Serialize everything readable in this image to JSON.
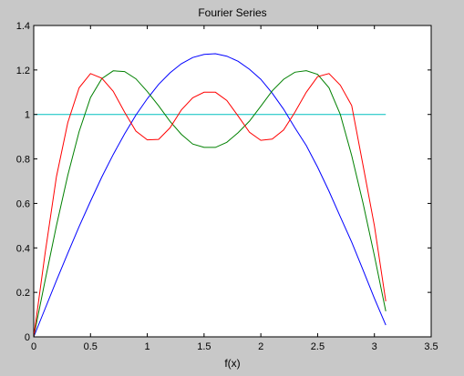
{
  "chart_data": {
    "type": "line",
    "title": "Fourier Series",
    "xlabel": "f(x)",
    "ylabel": "",
    "xlim": [
      0,
      3.5
    ],
    "ylim": [
      0,
      1.4
    ],
    "xticks": [
      0,
      0.5,
      1,
      1.5,
      2,
      2.5,
      3,
      3.5
    ],
    "xtick_labels": [
      "0",
      "0.5",
      "1",
      "1.5",
      "2",
      "2.5",
      "3",
      "3.5"
    ],
    "yticks": [
      0,
      0.2,
      0.4,
      0.6,
      0.8,
      1,
      1.2,
      1.4
    ],
    "ytick_labels": [
      "0",
      "0.2",
      "0.4",
      "0.6",
      "0.8",
      "1",
      "1.2",
      "1.4"
    ],
    "grid": false,
    "legend": "none",
    "series": [
      {
        "color": "#00bfbf",
        "x": [
          0,
          0.1,
          0.2,
          0.3,
          0.4,
          0.5,
          0.6,
          0.7,
          0.8,
          0.9,
          1.0,
          1.1,
          1.2,
          1.3,
          1.4,
          1.5,
          1.6,
          1.7,
          1.8,
          1.9,
          2.0,
          2.1,
          2.2,
          2.3,
          2.4,
          2.5,
          2.6,
          2.7,
          2.8,
          2.9,
          3.0,
          3.1
        ],
        "y": [
          1.0,
          1.0,
          1.0,
          1.0,
          1.0,
          1.0,
          1.0,
          1.0,
          1.0,
          1.0,
          1.0,
          1.0,
          1.0,
          1.0,
          1.0,
          1.0,
          1.0,
          1.0,
          1.0,
          1.0,
          1.0,
          1.0,
          1.0,
          1.0,
          1.0,
          1.0,
          1.0,
          1.0,
          1.0,
          1.0,
          1.0,
          1.0
        ]
      },
      {
        "color": "#0000ff",
        "x": [
          0,
          0.1,
          0.2,
          0.3,
          0.4,
          0.5,
          0.6,
          0.7,
          0.8,
          0.9,
          1.0,
          1.1,
          1.2,
          1.3,
          1.4,
          1.5,
          1.6,
          1.7,
          1.8,
          1.9,
          2.0,
          2.1,
          2.2,
          2.3,
          2.4,
          2.5,
          2.6,
          2.7,
          2.8,
          2.9,
          3.0,
          3.1
        ],
        "y": [
          0.0,
          0.127,
          0.253,
          0.376,
          0.496,
          0.61,
          0.719,
          0.82,
          0.913,
          0.997,
          1.071,
          1.135,
          1.187,
          1.228,
          1.256,
          1.27,
          1.273,
          1.262,
          1.239,
          1.203,
          1.158,
          1.096,
          1.024,
          0.94,
          0.86,
          0.763,
          0.655,
          0.54,
          0.426,
          0.3,
          0.173,
          0.053
        ]
      },
      {
        "color": "#008000",
        "x": [
          0,
          0.1,
          0.2,
          0.3,
          0.4,
          0.5,
          0.6,
          0.7,
          0.8,
          0.9,
          1.0,
          1.1,
          1.2,
          1.3,
          1.4,
          1.5,
          1.6,
          1.7,
          1.8,
          1.9,
          2.0,
          2.1,
          2.2,
          2.3,
          2.4,
          2.5,
          2.6,
          2.7,
          2.8,
          2.9,
          3.0,
          3.1
        ],
        "y": [
          0.0,
          0.254,
          0.5,
          0.727,
          0.923,
          1.076,
          1.161,
          1.196,
          1.193,
          1.16,
          1.103,
          1.039,
          0.969,
          0.911,
          0.867,
          0.852,
          0.852,
          0.875,
          0.918,
          0.97,
          1.037,
          1.106,
          1.158,
          1.19,
          1.197,
          1.18,
          1.12,
          1.0,
          0.815,
          0.6,
          0.365,
          0.115
        ]
      },
      {
        "color": "#ff0000",
        "x": [
          0,
          0.1,
          0.2,
          0.3,
          0.4,
          0.5,
          0.6,
          0.7,
          0.8,
          0.9,
          1.0,
          1.1,
          1.2,
          1.3,
          1.4,
          1.5,
          1.6,
          1.7,
          1.8,
          1.9,
          2.0,
          2.1,
          2.2,
          2.3,
          2.4,
          2.5,
          2.6,
          2.7,
          2.8,
          2.9,
          3.0,
          3.1
        ],
        "y": [
          0.0,
          0.376,
          0.72,
          0.964,
          1.12,
          1.184,
          1.163,
          1.104,
          1.01,
          0.925,
          0.886,
          0.888,
          0.94,
          1.02,
          1.075,
          1.1,
          1.1,
          1.063,
          0.993,
          0.92,
          0.884,
          0.889,
          0.93,
          1.01,
          1.1,
          1.17,
          1.184,
          1.132,
          1.04,
          0.77,
          0.5,
          0.16
        ]
      }
    ]
  }
}
